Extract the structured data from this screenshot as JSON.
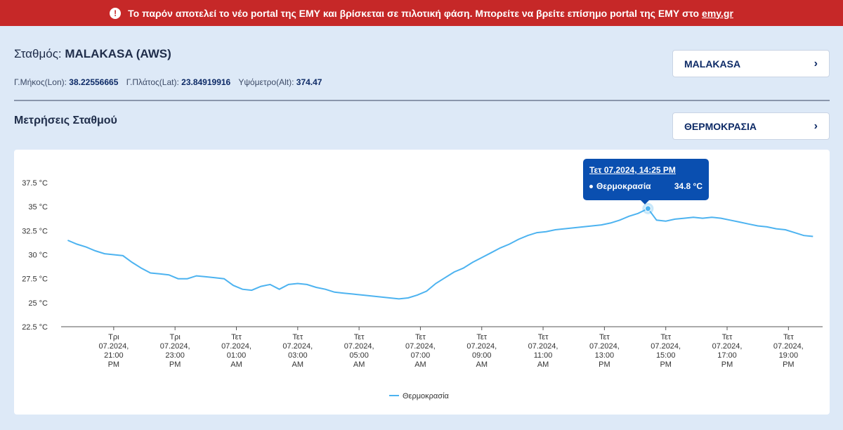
{
  "banner": {
    "icon": "alert-circle-icon",
    "text": "Το παρόν αποτελεί το νέο portal της ΕΜΥ και βρίσκεται σε πιλοτική φάση. Μπορείτε να βρείτε επίσημο portal της ΕΜΥ στο",
    "link_text": "emy.gr",
    "bg_color": "#c62828"
  },
  "station": {
    "label": "Σταθμός:",
    "name": "MALAKASA (AWS)",
    "lon_label": "Γ.Μήκος(Lon):",
    "lon_value": "38.22556665",
    "lat_label": "Γ.Πλάτος(Lat):",
    "lat_value": "23.84919916",
    "alt_label": "Υψόμετρο(Alt):",
    "alt_value": "374.47"
  },
  "station_select": {
    "value": "MALAKASA",
    "icon": "chevron-right-icon"
  },
  "metric_select": {
    "value": "ΘΕΡΜΟΚΡΑΣΙΑ",
    "icon": "chevron-right-icon"
  },
  "section_title": "Μετρήσεις Σταθμού",
  "tooltip": {
    "title": "Τετ 07.2024, 14:25 PM",
    "series": "Θερμοκρασία",
    "value": "34.8 °C"
  },
  "chart_data": {
    "type": "line",
    "ylim": [
      22.5,
      37.5
    ],
    "yticks": [
      "37.5 °C",
      "35 °C",
      "32.5 °C",
      "30 °C",
      "27.5 °C",
      "25 °C",
      "22.5 °C"
    ],
    "ytick_values": [
      37.5,
      35,
      32.5,
      30,
      27.5,
      25,
      22.5
    ],
    "xlim": [
      19.5,
      20.8
    ],
    "xticks": [
      {
        "h": 21,
        "lines": [
          "Τρι",
          "07.2024,",
          "21:00",
          "PM"
        ]
      },
      {
        "h": 23,
        "lines": [
          "Τρι",
          "07.2024,",
          "23:00",
          "PM"
        ]
      },
      {
        "h": 25,
        "lines": [
          "Τετ",
          "07.2024,",
          "01:00",
          "AM"
        ]
      },
      {
        "h": 27,
        "lines": [
          "Τετ",
          "07.2024,",
          "03:00",
          "AM"
        ]
      },
      {
        "h": 29,
        "lines": [
          "Τετ",
          "07.2024,",
          "05:00",
          "AM"
        ]
      },
      {
        "h": 31,
        "lines": [
          "Τετ",
          "07.2024,",
          "07:00",
          "AM"
        ]
      },
      {
        "h": 33,
        "lines": [
          "Τετ",
          "07.2024,",
          "09:00",
          "AM"
        ]
      },
      {
        "h": 35,
        "lines": [
          "Τετ",
          "07.2024,",
          "11:00",
          "AM"
        ]
      },
      {
        "h": 37,
        "lines": [
          "Τετ",
          "07.2024,",
          "13:00",
          "PM"
        ]
      },
      {
        "h": 39,
        "lines": [
          "Τετ",
          "07.2024,",
          "15:00",
          "PM"
        ]
      },
      {
        "h": 41,
        "lines": [
          "Τετ",
          "07.2024,",
          "17:00",
          "PM"
        ]
      },
      {
        "h": 43,
        "lines": [
          "Τετ",
          "07.2024,",
          "19:00",
          "PM"
        ]
      }
    ],
    "series": [
      {
        "name": "Θερμοκρασία",
        "color": "#4db3f0",
        "points": [
          [
            19.5,
            31.5
          ],
          [
            19.8,
            31.1
          ],
          [
            20.1,
            30.8
          ],
          [
            20.4,
            30.4
          ],
          [
            20.7,
            30.1
          ],
          [
            21.0,
            30.0
          ],
          [
            21.3,
            29.9
          ],
          [
            21.6,
            29.2
          ],
          [
            21.9,
            28.6
          ],
          [
            22.2,
            28.1
          ],
          [
            22.5,
            28.0
          ],
          [
            22.8,
            27.9
          ],
          [
            23.1,
            27.5
          ],
          [
            23.4,
            27.5
          ],
          [
            23.7,
            27.8
          ],
          [
            24.0,
            27.7
          ],
          [
            24.3,
            27.6
          ],
          [
            24.6,
            27.5
          ],
          [
            24.9,
            26.8
          ],
          [
            25.2,
            26.4
          ],
          [
            25.5,
            26.3
          ],
          [
            25.8,
            26.7
          ],
          [
            26.1,
            26.9
          ],
          [
            26.4,
            26.4
          ],
          [
            26.7,
            26.9
          ],
          [
            27.0,
            27.0
          ],
          [
            27.3,
            26.9
          ],
          [
            27.6,
            26.6
          ],
          [
            27.9,
            26.4
          ],
          [
            28.2,
            26.1
          ],
          [
            28.5,
            26.0
          ],
          [
            28.8,
            25.9
          ],
          [
            29.1,
            25.8
          ],
          [
            29.4,
            25.7
          ],
          [
            29.7,
            25.6
          ],
          [
            30.0,
            25.5
          ],
          [
            30.3,
            25.4
          ],
          [
            30.6,
            25.5
          ],
          [
            30.9,
            25.8
          ],
          [
            31.2,
            26.2
          ],
          [
            31.5,
            27.0
          ],
          [
            31.8,
            27.6
          ],
          [
            32.1,
            28.2
          ],
          [
            32.4,
            28.6
          ],
          [
            32.7,
            29.2
          ],
          [
            33.0,
            29.7
          ],
          [
            33.3,
            30.2
          ],
          [
            33.6,
            30.7
          ],
          [
            33.9,
            31.1
          ],
          [
            34.2,
            31.6
          ],
          [
            34.5,
            32.0
          ],
          [
            34.8,
            32.3
          ],
          [
            35.1,
            32.4
          ],
          [
            35.4,
            32.6
          ],
          [
            35.7,
            32.7
          ],
          [
            36.0,
            32.8
          ],
          [
            36.3,
            32.9
          ],
          [
            36.6,
            33.0
          ],
          [
            36.9,
            33.1
          ],
          [
            37.2,
            33.3
          ],
          [
            37.5,
            33.6
          ],
          [
            37.8,
            34.0
          ],
          [
            38.1,
            34.3
          ],
          [
            38.42,
            34.8
          ],
          [
            38.7,
            33.6
          ],
          [
            39.0,
            33.5
          ],
          [
            39.3,
            33.7
          ],
          [
            39.6,
            33.8
          ],
          [
            39.9,
            33.9
          ],
          [
            40.2,
            33.8
          ],
          [
            40.5,
            33.9
          ],
          [
            40.8,
            33.8
          ],
          [
            41.1,
            33.6
          ],
          [
            41.4,
            33.4
          ],
          [
            41.7,
            33.2
          ],
          [
            42.0,
            33.0
          ],
          [
            42.3,
            32.9
          ],
          [
            42.6,
            32.7
          ],
          [
            42.9,
            32.6
          ],
          [
            43.2,
            32.3
          ],
          [
            43.5,
            32.0
          ],
          [
            43.8,
            31.9
          ]
        ]
      }
    ],
    "highlight": {
      "x": 38.42,
      "y": 34.8
    },
    "legend": "Θερμοκρασία"
  }
}
